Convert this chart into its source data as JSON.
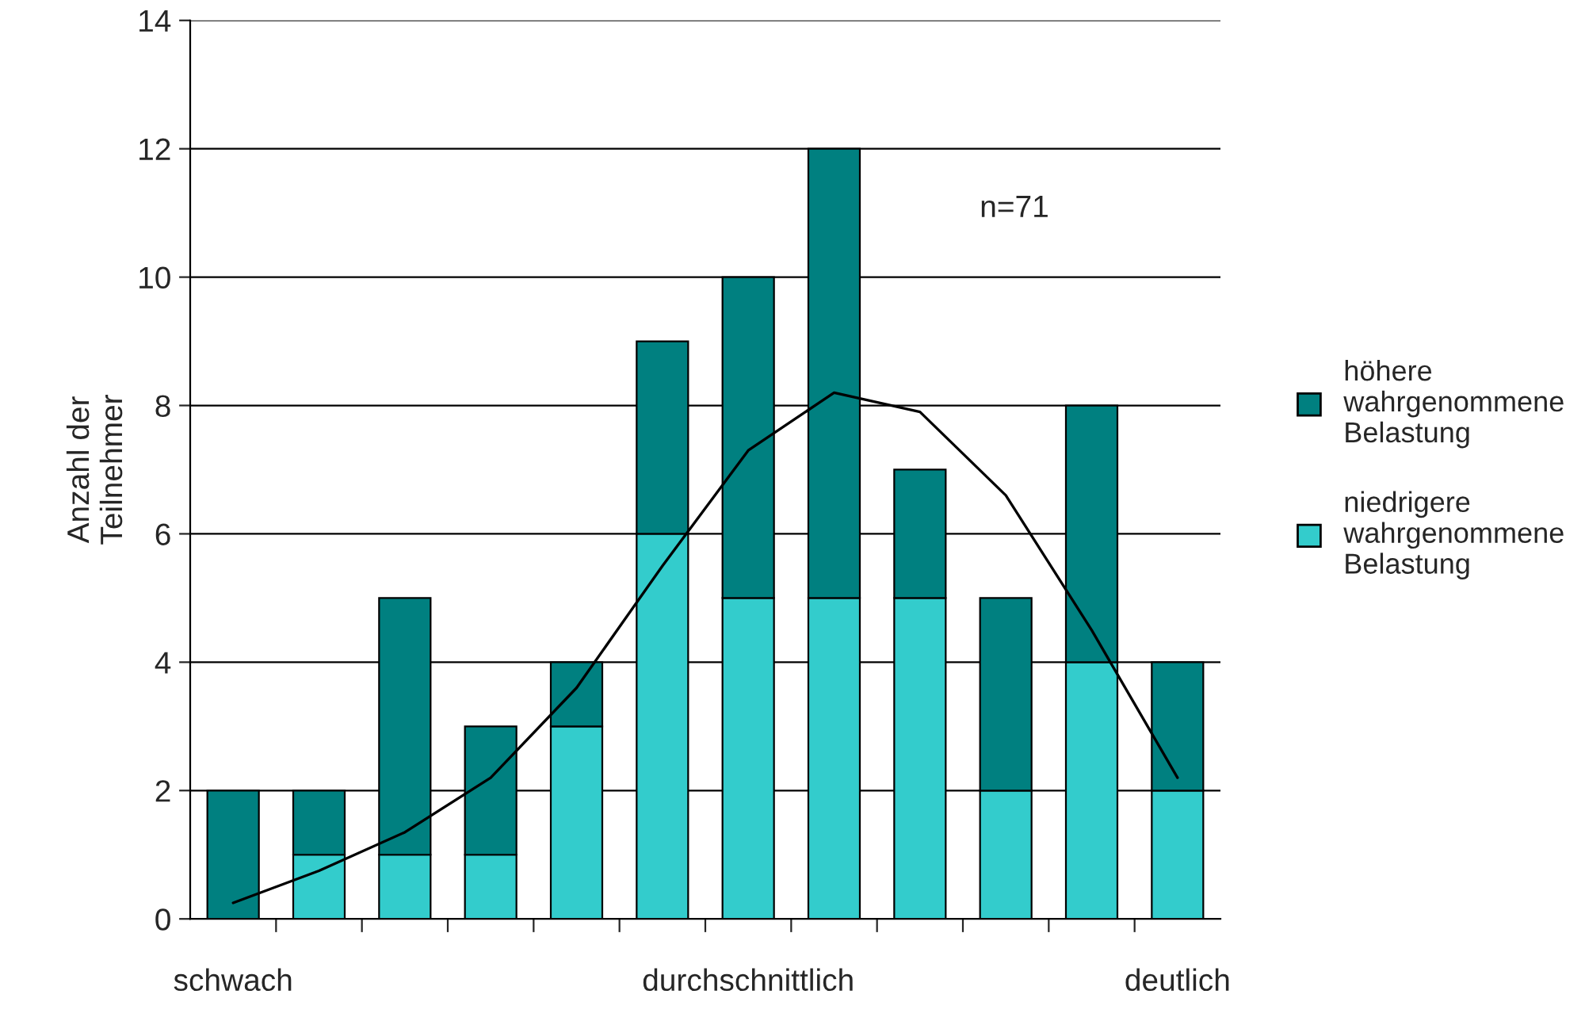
{
  "chart_data": {
    "type": "bar",
    "stacked": true,
    "ylabel": "Anzahl der\nTeilnehmer",
    "categories": [
      "schwach",
      null,
      null,
      null,
      null,
      null,
      "durchschnittlich",
      null,
      null,
      null,
      null,
      "deutlich"
    ],
    "series": [
      {
        "name": "niedrigere\nwahrgenommene\nBelastung",
        "color": "#33cccc",
        "values": [
          0,
          1,
          1,
          1,
          3,
          6,
          5,
          5,
          5,
          2,
          4,
          2
        ]
      },
      {
        "name": "höhere\nwahrgenommene\nBelastung",
        "color": "#008080",
        "values": [
          2,
          1,
          4,
          2,
          1,
          3,
          5,
          7,
          2,
          3,
          4,
          2
        ]
      },
      {
        "type": "line",
        "color": "#000000",
        "values": [
          0.25,
          0.75,
          1.35,
          2.2,
          3.6,
          5.5,
          7.3,
          8.2,
          7.9,
          6.6,
          4.5,
          2.2
        ]
      }
    ],
    "ylim": [
      0,
      14
    ],
    "yticks": [
      0,
      2,
      4,
      6,
      8,
      10,
      12,
      14
    ],
    "grid": "y",
    "legend": "right",
    "annotations": [
      "n=71"
    ]
  }
}
